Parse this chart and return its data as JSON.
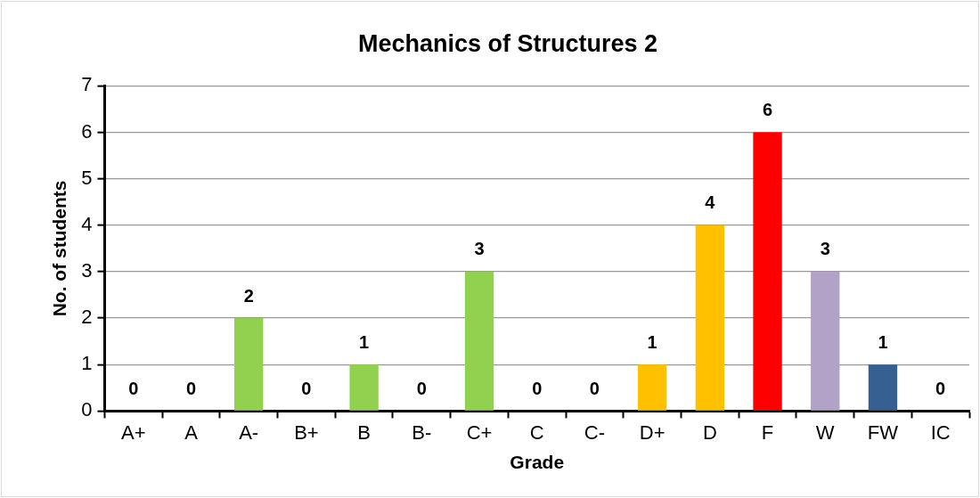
{
  "chart_data": {
    "type": "bar",
    "title": "Mechanics of Structures 2",
    "xlabel": "Grade",
    "ylabel": "No. of students",
    "categories": [
      "A+",
      "A",
      "A-",
      "B+",
      "B",
      "B-",
      "C+",
      "C",
      "C-",
      "D+",
      "D",
      "F",
      "W",
      "FW",
      "IC"
    ],
    "values": [
      0,
      0,
      2,
      0,
      1,
      0,
      3,
      0,
      0,
      1,
      4,
      6,
      3,
      1,
      0
    ],
    "colors": [
      "#92d050",
      "#92d050",
      "#92d050",
      "#92d050",
      "#92d050",
      "#92d050",
      "#92d050",
      "#92d050",
      "#92d050",
      "#ffc000",
      "#ffc000",
      "#ff0000",
      "#b2a2c7",
      "#376092",
      "#376092"
    ],
    "ylim": [
      0,
      7
    ],
    "yticks": [
      0,
      1,
      2,
      3,
      4,
      5,
      6,
      7
    ],
    "grid": "y",
    "legend": false,
    "data_labels": true
  }
}
